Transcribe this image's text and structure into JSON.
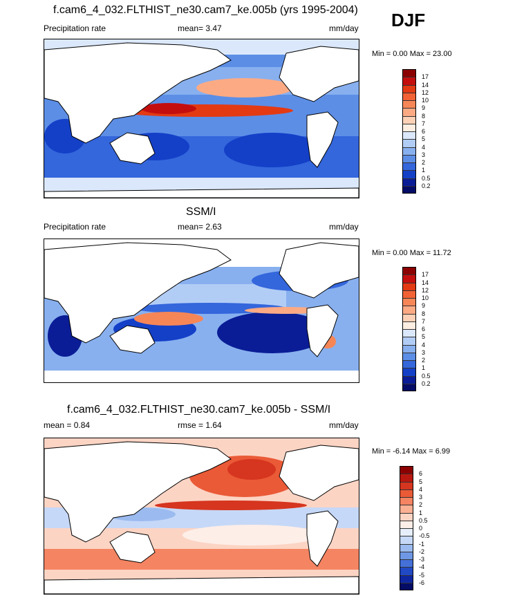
{
  "season": "DJF",
  "panels": [
    {
      "title": "f.cam6_4_032.FLTHIST_ne30.cam7_ke.005b (yrs 1995-2004)",
      "left_label": "Precipitation rate",
      "stat1": "mean=   3.47",
      "stat2": "",
      "units": "mm/day",
      "minmax": "Min =   0.00 Max =  23.00",
      "colorbar_labels": [
        "17",
        "14",
        "12",
        "10",
        "9",
        "8",
        "7",
        "6",
        "5",
        "4",
        "3",
        "2",
        "1",
        "0.5",
        "0.2"
      ],
      "colorbar_colors": [
        "#8b0000",
        "#c40e0e",
        "#e33a14",
        "#f26235",
        "#f78657",
        "#fcaa84",
        "#fdd1b6",
        "#fdeee2",
        "#dbe8fb",
        "#b2cdf5",
        "#88b0ef",
        "#5c8ee6",
        "#3466dc",
        "#1440c8",
        "#0a1d96",
        "#040c66"
      ]
    },
    {
      "title": "SSM/I",
      "left_label": "Precipitation rate",
      "stat1": "mean=   2.63",
      "stat2": "",
      "units": "mm/day",
      "minmax": "Min =   0.00 Max =  11.72",
      "colorbar_labels": [
        "17",
        "14",
        "12",
        "10",
        "9",
        "8",
        "7",
        "6",
        "5",
        "4",
        "3",
        "2",
        "1",
        "0.5",
        "0.2"
      ],
      "colorbar_colors": [
        "#8b0000",
        "#c40e0e",
        "#e33a14",
        "#f26235",
        "#f78657",
        "#fcaa84",
        "#fdd1b6",
        "#fdeee2",
        "#dbe8fb",
        "#b2cdf5",
        "#88b0ef",
        "#5c8ee6",
        "#3466dc",
        "#1440c8",
        "#0a1d96",
        "#040c66"
      ]
    },
    {
      "title": "f.cam6_4_032.FLTHIST_ne30.cam7_ke.005b - SSM/I",
      "left_label": "mean =   0.84",
      "stat1": "rmse =   1.64",
      "stat2": "",
      "units": "mm/day",
      "minmax": "Min =  -6.14 Max =   6.99",
      "colorbar_labels": [
        "6",
        "5",
        "4",
        "3",
        "2",
        "1",
        "0.5",
        "0",
        "-0.5",
        "-1",
        "-2",
        "-3",
        "-4",
        "-5",
        "-6"
      ],
      "colorbar_colors": [
        "#8b0000",
        "#b8180f",
        "#d6351f",
        "#ea5a37",
        "#f58462",
        "#fab093",
        "#fcd4c4",
        "#fdeee8",
        "#e6eefb",
        "#c6d8f7",
        "#9bbbf0",
        "#6e98e6",
        "#4470d8",
        "#2149c4",
        "#0e26a0",
        "#040c66"
      ]
    }
  ]
}
